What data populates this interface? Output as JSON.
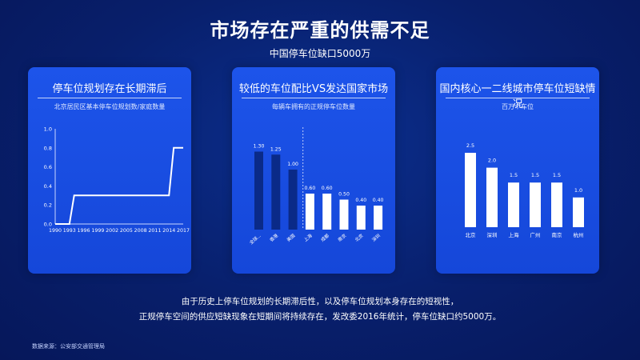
{
  "page": {
    "title": "市场存在严重的供需不足",
    "subtitle": "中国停车位缺口5000万",
    "summary_line1": "由于历史上停车位规划的长期滞后性，以及停车位规划本身存在的短视性，",
    "summary_line2": "正规停车空间的供应短缺现象在短期间将持续存在，发改委2016年统计，停车位缺口约5000万。",
    "source": "数据来源：公安部交通管理局"
  },
  "cards": [
    {
      "title": "停车位规划存在长期滞后",
      "caption": "北京居民区基本停车位规划数/家庭数量"
    },
    {
      "title": "较低的车位配比VS发达国家市场",
      "caption": "每辆车拥有的正规停车位数量"
    },
    {
      "title": "国内核心一二线城市停车位短缺情况",
      "caption": "百万个车位"
    }
  ],
  "colors": {
    "card": "#1d54ea",
    "bar_dark": "#0a2a88",
    "bar_light": "#ffffff",
    "line": "#ffffff"
  },
  "chart_data": [
    {
      "type": "line",
      "x": [
        1990,
        1993,
        1994,
        1996,
        1999,
        2002,
        2005,
        2008,
        2011,
        2014,
        2015,
        2017
      ],
      "values": [
        0.0,
        0.0,
        0.3,
        0.3,
        0.3,
        0.3,
        0.3,
        0.3,
        0.3,
        0.3,
        0.8,
        0.8
      ],
      "xticks": [
        "1990",
        "1993",
        "1996",
        "1999",
        "2002",
        "2005",
        "2008",
        "2011",
        "2014",
        "2017"
      ],
      "yticks": [
        "0.0",
        "0.2",
        "0.4",
        "0.6",
        "0.8",
        "1.0"
      ],
      "ylim": [
        0,
        1.0
      ],
      "grid": false
    },
    {
      "type": "bar",
      "categories": [
        "全球...",
        "香港",
        "美国",
        "上海",
        "成都",
        "南京",
        "北京",
        "深圳"
      ],
      "values": [
        1.3,
        1.25,
        1.0,
        0.6,
        0.6,
        0.5,
        0.4,
        0.4
      ],
      "labels": [
        "1.30",
        "1.25",
        "1.00",
        "0.60",
        "0.60",
        "0.50",
        "0.40",
        "0.40"
      ],
      "dark_count": 3,
      "ylim": [
        0,
        1.5
      ],
      "divider": "dashed line between developed markets and Chinese cities"
    },
    {
      "type": "bar",
      "categories": [
        "北京",
        "深圳",
        "上海",
        "广州",
        "南京",
        "杭州"
      ],
      "values": [
        2.5,
        2.0,
        1.5,
        1.5,
        1.5,
        1.0
      ],
      "labels": [
        "2.5",
        "2.0",
        "1.5",
        "1.5",
        "1.5",
        "1.0"
      ],
      "ylim": [
        0,
        3.0
      ]
    }
  ]
}
